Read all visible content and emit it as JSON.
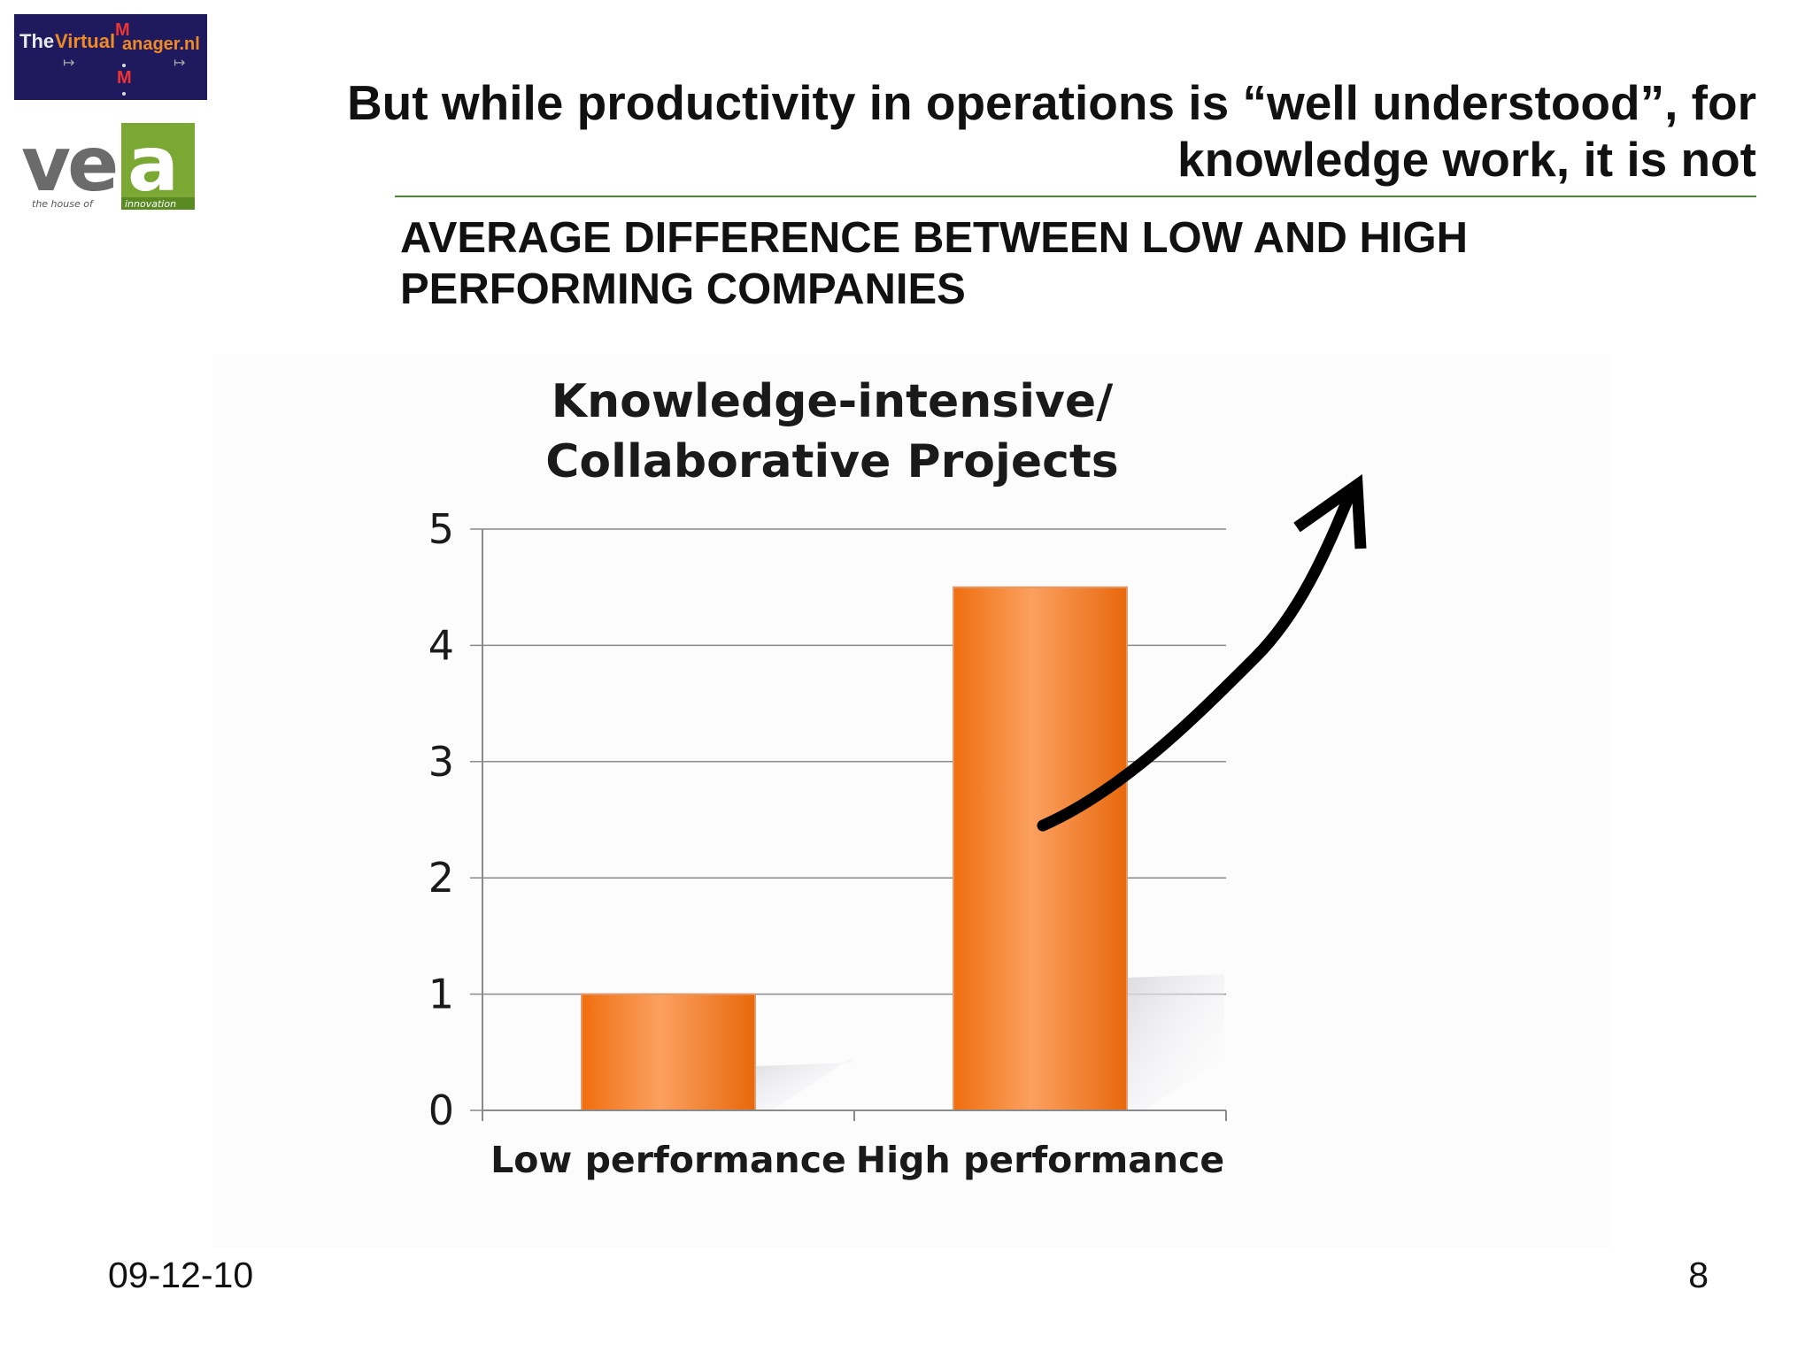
{
  "logos": {
    "tvm_text": "TheVirtualManager.nl",
    "vea_text": "vea",
    "vea_tagline": "the house of innovation"
  },
  "headline": "But while productivity in operations is “well understood”, for knowledge work, it is not",
  "subheading": "AVERAGE DIFFERENCE BETWEEN LOW AND HIGH PERFORMING COMPANIES",
  "chart_data": {
    "type": "bar",
    "title": "Knowledge-intensive/ Collaborative Projects",
    "categories": [
      "Low performance",
      "High performance"
    ],
    "values": [
      1,
      4.5
    ],
    "ylim": [
      0,
      5
    ],
    "yticks": [
      0,
      1,
      2,
      3,
      4,
      5
    ],
    "grid": true,
    "bar_color": "#f47b20",
    "annotation": "upward arrow pointing up and to the right from the High performance bar"
  },
  "footer": {
    "date": "09-12-10",
    "page": "8"
  }
}
